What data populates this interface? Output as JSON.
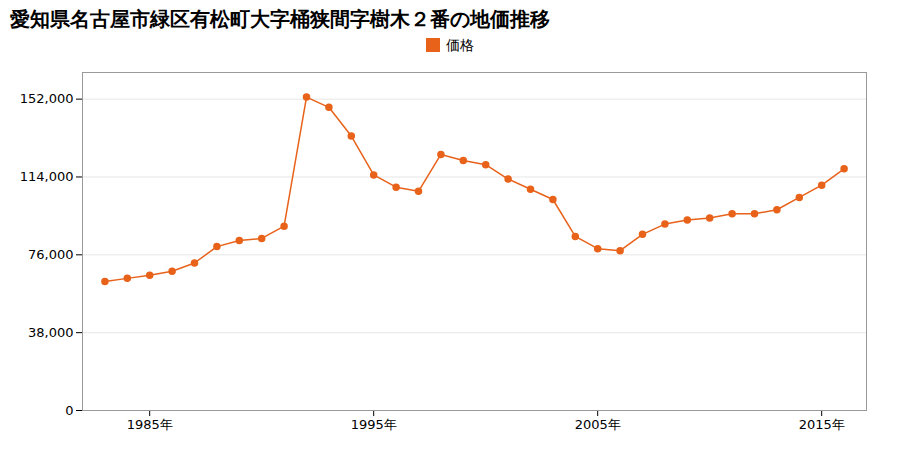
{
  "chart_data": {
    "type": "line",
    "title": "愛知県名古屋市緑区有松町大字桶狭間字樹木２番の地価推移",
    "x": [
      1983,
      1984,
      1985,
      1986,
      1987,
      1988,
      1989,
      1990,
      1991,
      1992,
      1993,
      1994,
      1995,
      1996,
      1997,
      1998,
      1999,
      2000,
      2001,
      2002,
      2003,
      2004,
      2005,
      2006,
      2007,
      2008,
      2009,
      2010,
      2011,
      2012,
      2013,
      2014,
      2015,
      2016
    ],
    "series": [
      {
        "name": "価格",
        "color": "#e8621a",
        "marker": "circle",
        "values": [
          63000,
          64500,
          66000,
          68000,
          72000,
          80000,
          83000,
          84000,
          90000,
          153000,
          148000,
          134000,
          115000,
          109000,
          107000,
          125000,
          122000,
          120000,
          113000,
          108000,
          103000,
          85000,
          79000,
          78000,
          86000,
          91000,
          93000,
          94000,
          96000,
          96000,
          98000,
          104000,
          110000,
          118000
        ]
      }
    ],
    "xlim": [
      1982,
      2017
    ],
    "xticks": [
      {
        "value": 1985,
        "label": "1985年"
      },
      {
        "value": 1995,
        "label": "1995年"
      },
      {
        "value": 2005,
        "label": "2005年"
      },
      {
        "value": 2015,
        "label": "2015年"
      }
    ],
    "ylim": [
      0,
      165000
    ],
    "yticks": [
      0,
      {
        "value": 38000,
        "label": "38,000"
      },
      {
        "value": 76000,
        "label": "76,000"
      },
      {
        "value": 114000,
        "label": "114,000"
      },
      {
        "value": 152000,
        "label": "152,000"
      }
    ],
    "grid": true,
    "legend": "top"
  }
}
